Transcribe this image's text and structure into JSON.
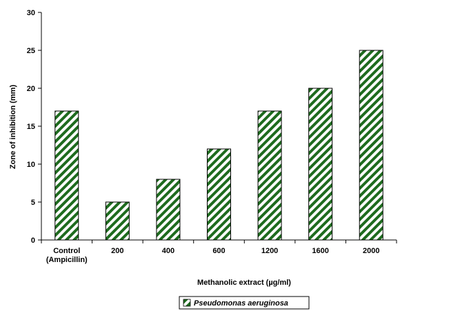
{
  "chart_data": {
    "type": "bar",
    "categories": [
      [
        "Control",
        "(Ampicillin)"
      ],
      [
        "200"
      ],
      [
        "400"
      ],
      [
        "600"
      ],
      [
        "1200"
      ],
      [
        "1600"
      ],
      [
        "2000"
      ]
    ],
    "series": [
      {
        "name": "Pseudomonas aeruginosa",
        "values": [
          17,
          5,
          8,
          12,
          17,
          20,
          25
        ]
      }
    ],
    "xlabel": "Methanolic extract (µg/ml)",
    "ylabel": "Zone of inhibition (mm)",
    "ylim": [
      0,
      30
    ],
    "yticks": [
      0,
      5,
      10,
      15,
      20,
      25,
      30
    ],
    "grid": false,
    "legend_position": "bottom",
    "colors": {
      "bar_stripe": "#1e6b1e",
      "bar_fill": "#ffffff",
      "axis": "#000000"
    }
  }
}
